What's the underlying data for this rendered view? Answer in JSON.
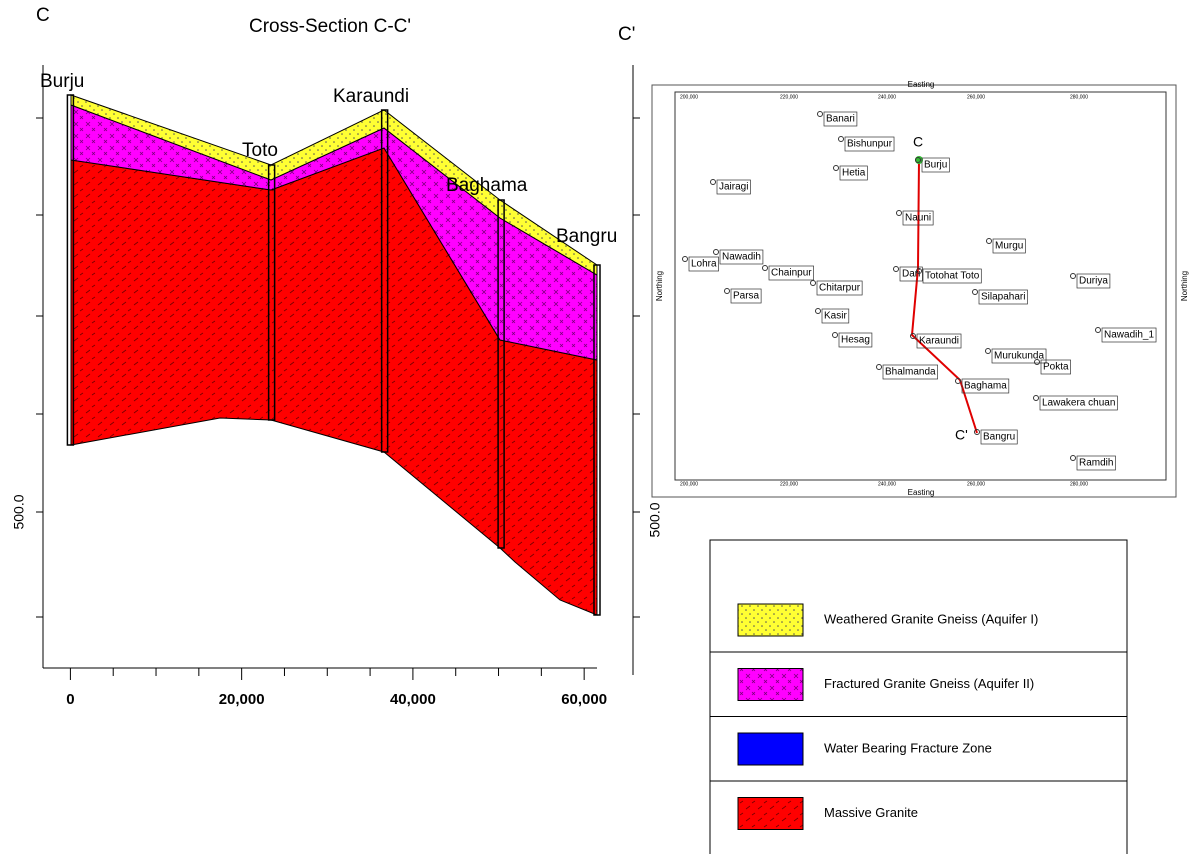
{
  "cross_section": {
    "title": "Cross-Section C-C'",
    "start_label": "C",
    "end_label": "C'",
    "xlim": [
      -3200,
      61500
    ],
    "xticks": [
      {
        "value": 0,
        "label": "0"
      },
      {
        "value": 20000,
        "label": "20,000"
      },
      {
        "value": 40000,
        "label": "40,000"
      },
      {
        "value": 60000,
        "label": "60,000"
      }
    ],
    "xminorticks": [
      5000,
      10000,
      15000,
      25000,
      30000,
      35000,
      45000,
      50000,
      55000
    ],
    "left_axis_label": "500.0",
    "right_axis_label": "500.0",
    "wells": [
      {
        "name": "Burju",
        "x": 0
      },
      {
        "name": "Toto",
        "x": 23500
      },
      {
        "name": "Karaundi",
        "x": 36700
      },
      {
        "name": "Baghama",
        "x": 50300
      },
      {
        "name": "Bangru",
        "x": 61500
      }
    ]
  },
  "map": {
    "top_axis": "Easting",
    "bottom_axis": "Easting",
    "left_axis": "Northing",
    "right_axis": "Northing",
    "easting_labels": [
      "200,000",
      "220,000",
      "240,000",
      "260,000",
      "280,000"
    ],
    "start_marker": "C",
    "end_marker": "C'",
    "places": [
      "Banari",
      "Bishunpur",
      "Burju",
      "Hetia",
      "Jairagi",
      "Nauni",
      "Murgu",
      "Nawadih",
      "Lohra",
      "Chainpur",
      "Dari",
      "Totohat Toto",
      "Duriya",
      "Chitarpur",
      "Parsa",
      "Silapahari",
      "Kasir",
      "Nawadih_1",
      "Hesag",
      "Karaundi",
      "Murukunda",
      "Pokta",
      "Bhalmanda",
      "Baghama",
      "Lawakera chuan",
      "Bangru",
      "Ramdih"
    ]
  },
  "legend": {
    "items": [
      "Weathered Granite Gneiss (Aquifer I)",
      "Fractured Granite Gneiss (Aquifer II)",
      "Water Bearing Fracture Zone",
      "Massive Granite"
    ]
  }
}
